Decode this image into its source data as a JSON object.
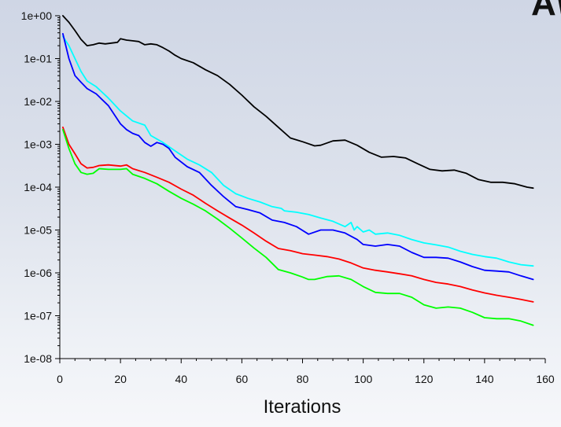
{
  "corner_mark": "A\\",
  "chart_data": {
    "type": "line",
    "xlabel": "Iterations",
    "ylabel": "",
    "title": "",
    "xlim": [
      0,
      160
    ],
    "ylim": [
      1e-08,
      1
    ],
    "y_scale": "log",
    "x_ticks": [
      0,
      20,
      40,
      60,
      80,
      100,
      120,
      140,
      160
    ],
    "x_tick_labels": [
      "0",
      "20",
      "40",
      "60",
      "80",
      "100",
      "120",
      "140",
      "160"
    ],
    "y_ticks": [
      1,
      0.1,
      0.01,
      0.001,
      0.0001,
      1e-05,
      1e-06,
      1e-07,
      1e-08
    ],
    "y_tick_labels": [
      "1e+00",
      "1e-01",
      "1e-02",
      "1e-03",
      "1e-04",
      "1e-05",
      "1e-06",
      "1e-07",
      "1e-08"
    ],
    "grid": false,
    "legend": "none",
    "series": [
      {
        "color": "#000000",
        "points": [
          [
            1,
            1.0
          ],
          [
            3,
            0.7
          ],
          [
            5,
            0.45
          ],
          [
            7,
            0.28
          ],
          [
            9,
            0.2
          ],
          [
            11,
            0.21
          ],
          [
            13,
            0.23
          ],
          [
            15,
            0.22
          ],
          [
            17,
            0.23
          ],
          [
            19,
            0.24
          ],
          [
            20,
            0.29
          ],
          [
            22,
            0.27
          ],
          [
            24,
            0.26
          ],
          [
            26,
            0.25
          ],
          [
            28,
            0.21
          ],
          [
            30,
            0.22
          ],
          [
            32,
            0.21
          ],
          [
            34,
            0.18
          ],
          [
            36,
            0.15
          ],
          [
            38,
            0.12
          ],
          [
            40,
            0.1
          ],
          [
            44,
            0.08
          ],
          [
            48,
            0.055
          ],
          [
            52,
            0.04
          ],
          [
            56,
            0.025
          ],
          [
            60,
            0.014
          ],
          [
            64,
            0.0075
          ],
          [
            68,
            0.0045
          ],
          [
            72,
            0.0025
          ],
          [
            76,
            0.0014
          ],
          [
            80,
            0.00115
          ],
          [
            84,
            0.00092
          ],
          [
            86,
            0.00095
          ],
          [
            90,
            0.0012
          ],
          [
            94,
            0.00125
          ],
          [
            98,
            0.00095
          ],
          [
            102,
            0.00065
          ],
          [
            106,
            0.0005
          ],
          [
            110,
            0.00052
          ],
          [
            114,
            0.00048
          ],
          [
            118,
            0.00035
          ],
          [
            122,
            0.00026
          ],
          [
            126,
            0.00024
          ],
          [
            130,
            0.00025
          ],
          [
            134,
            0.00021
          ],
          [
            138,
            0.00015
          ],
          [
            142,
            0.00013
          ],
          [
            146,
            0.00013
          ],
          [
            150,
            0.00012
          ],
          [
            154,
            0.0001
          ],
          [
            156,
            9.5e-05
          ]
        ]
      },
      {
        "color": "#00ffff",
        "points": [
          [
            1,
            0.33
          ],
          [
            3,
            0.2
          ],
          [
            5,
            0.1
          ],
          [
            7,
            0.05
          ],
          [
            9,
            0.03
          ],
          [
            12,
            0.022
          ],
          [
            16,
            0.012
          ],
          [
            20,
            0.006
          ],
          [
            24,
            0.0035
          ],
          [
            28,
            0.0028
          ],
          [
            30,
            0.0016
          ],
          [
            34,
            0.0011
          ],
          [
            38,
            0.0007
          ],
          [
            42,
            0.00045
          ],
          [
            46,
            0.00033
          ],
          [
            50,
            0.00022
          ],
          [
            54,
            0.00011
          ],
          [
            58,
            7e-05
          ],
          [
            62,
            5.5e-05
          ],
          [
            66,
            4.5e-05
          ],
          [
            70,
            3.5e-05
          ],
          [
            73,
            3.2e-05
          ],
          [
            74,
            2.8e-05
          ],
          [
            78,
            2.6e-05
          ],
          [
            82,
            2.3e-05
          ],
          [
            86,
            1.9e-05
          ],
          [
            90,
            1.6e-05
          ],
          [
            94,
            1.2e-05
          ],
          [
            96,
            1.5e-05
          ],
          [
            97,
            1e-05
          ],
          [
            98,
            1.2e-05
          ],
          [
            100,
            9e-06
          ],
          [
            102,
            1e-05
          ],
          [
            104,
            8e-06
          ],
          [
            108,
            8.5e-06
          ],
          [
            112,
            7.5e-06
          ],
          [
            116,
            6e-06
          ],
          [
            120,
            5e-06
          ],
          [
            124,
            4.5e-06
          ],
          [
            128,
            4e-06
          ],
          [
            132,
            3.2e-06
          ],
          [
            136,
            2.7e-06
          ],
          [
            140,
            2.4e-06
          ],
          [
            144,
            2.2e-06
          ],
          [
            148,
            1.8e-06
          ],
          [
            152,
            1.55e-06
          ],
          [
            156,
            1.45e-06
          ]
        ]
      },
      {
        "color": "#0000ff",
        "points": [
          [
            1,
            0.38
          ],
          [
            3,
            0.1
          ],
          [
            5,
            0.04
          ],
          [
            7,
            0.028
          ],
          [
            9,
            0.02
          ],
          [
            12,
            0.015
          ],
          [
            16,
            0.008
          ],
          [
            20,
            0.003
          ],
          [
            22,
            0.0022
          ],
          [
            24,
            0.0018
          ],
          [
            26,
            0.0016
          ],
          [
            28,
            0.0011
          ],
          [
            30,
            0.0009
          ],
          [
            32,
            0.0011
          ],
          [
            34,
            0.001
          ],
          [
            36,
            0.0008
          ],
          [
            38,
            0.0005
          ],
          [
            42,
            0.0003
          ],
          [
            46,
            0.00022
          ],
          [
            50,
            0.00011
          ],
          [
            54,
            6e-05
          ],
          [
            58,
            3.5e-05
          ],
          [
            62,
            3e-05
          ],
          [
            66,
            2.5e-05
          ],
          [
            70,
            1.7e-05
          ],
          [
            74,
            1.5e-05
          ],
          [
            78,
            1.2e-05
          ],
          [
            82,
            8e-06
          ],
          [
            86,
            1e-05
          ],
          [
            90,
            1e-05
          ],
          [
            94,
            8.5e-06
          ],
          [
            98,
            6e-06
          ],
          [
            100,
            4.6e-06
          ],
          [
            104,
            4.2e-06
          ],
          [
            108,
            4.6e-06
          ],
          [
            112,
            4.2e-06
          ],
          [
            116,
            3e-06
          ],
          [
            120,
            2.3e-06
          ],
          [
            124,
            2.3e-06
          ],
          [
            128,
            2.2e-06
          ],
          [
            132,
            1.8e-06
          ],
          [
            136,
            1.4e-06
          ],
          [
            140,
            1.15e-06
          ],
          [
            144,
            1.1e-06
          ],
          [
            148,
            1.05e-06
          ],
          [
            152,
            8.5e-07
          ],
          [
            156,
            7e-07
          ]
        ]
      },
      {
        "color": "#ff0000",
        "points": [
          [
            1,
            0.0025
          ],
          [
            3,
            0.001
          ],
          [
            5,
            0.0006
          ],
          [
            7,
            0.00035
          ],
          [
            9,
            0.00028
          ],
          [
            11,
            0.00029
          ],
          [
            13,
            0.00032
          ],
          [
            16,
            0.00033
          ],
          [
            20,
            0.00031
          ],
          [
            22,
            0.00033
          ],
          [
            24,
            0.00027
          ],
          [
            28,
            0.00022
          ],
          [
            32,
            0.00017
          ],
          [
            36,
            0.00013
          ],
          [
            40,
            9e-05
          ],
          [
            44,
            6.5e-05
          ],
          [
            48,
            4.2e-05
          ],
          [
            52,
            2.8e-05
          ],
          [
            56,
            1.9e-05
          ],
          [
            60,
            1.3e-05
          ],
          [
            64,
            8.5e-06
          ],
          [
            68,
            5.5e-06
          ],
          [
            72,
            3.7e-06
          ],
          [
            76,
            3.3e-06
          ],
          [
            80,
            2.8e-06
          ],
          [
            84,
            2.6e-06
          ],
          [
            88,
            2.4e-06
          ],
          [
            92,
            2.1e-06
          ],
          [
            96,
            1.7e-06
          ],
          [
            100,
            1.3e-06
          ],
          [
            104,
            1.15e-06
          ],
          [
            108,
            1.05e-06
          ],
          [
            112,
            9.5e-07
          ],
          [
            116,
            8.5e-07
          ],
          [
            120,
            7e-07
          ],
          [
            124,
            6e-07
          ],
          [
            128,
            5.5e-07
          ],
          [
            132,
            4.8e-07
          ],
          [
            136,
            4e-07
          ],
          [
            140,
            3.4e-07
          ],
          [
            144,
            3e-07
          ],
          [
            148,
            2.7e-07
          ],
          [
            152,
            2.4e-07
          ],
          [
            156,
            2.1e-07
          ]
        ]
      },
      {
        "color": "#00ff00",
        "points": [
          [
            1,
            0.0022
          ],
          [
            3,
            0.0008
          ],
          [
            5,
            0.00035
          ],
          [
            7,
            0.00022
          ],
          [
            9,
            0.0002
          ],
          [
            11,
            0.00021
          ],
          [
            13,
            0.00027
          ],
          [
            16,
            0.00026
          ],
          [
            20,
            0.00026
          ],
          [
            22,
            0.00027
          ],
          [
            24,
            0.0002
          ],
          [
            28,
            0.00016
          ],
          [
            32,
            0.00012
          ],
          [
            36,
            8e-05
          ],
          [
            40,
            5.5e-05
          ],
          [
            44,
            4e-05
          ],
          [
            48,
            2.8e-05
          ],
          [
            52,
            1.8e-05
          ],
          [
            56,
            1.1e-05
          ],
          [
            60,
            6.5e-06
          ],
          [
            64,
            3.8e-06
          ],
          [
            68,
            2.3e-06
          ],
          [
            72,
            1.2e-06
          ],
          [
            76,
            1e-06
          ],
          [
            80,
            8e-07
          ],
          [
            82,
            7e-07
          ],
          [
            84,
            7e-07
          ],
          [
            88,
            8.2e-07
          ],
          [
            92,
            8.5e-07
          ],
          [
            96,
            7e-07
          ],
          [
            100,
            4.8e-07
          ],
          [
            104,
            3.5e-07
          ],
          [
            108,
            3.3e-07
          ],
          [
            112,
            3.3e-07
          ],
          [
            116,
            2.7e-07
          ],
          [
            120,
            1.8e-07
          ],
          [
            124,
            1.5e-07
          ],
          [
            128,
            1.6e-07
          ],
          [
            132,
            1.5e-07
          ],
          [
            136,
            1.2e-07
          ],
          [
            140,
            9e-08
          ],
          [
            144,
            8.5e-08
          ],
          [
            148,
            8.5e-08
          ],
          [
            152,
            7.5e-08
          ],
          [
            156,
            6e-08
          ]
        ]
      }
    ]
  }
}
